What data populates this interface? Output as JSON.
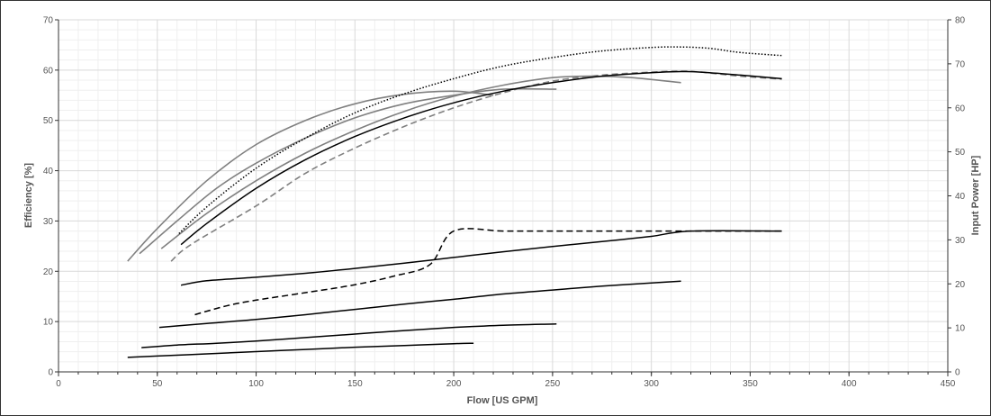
{
  "chart_data": {
    "type": "line",
    "title": "",
    "xlabel": "Flow [US GPM]",
    "ylabel": "Efficiency [%]",
    "y2label": "Input Power [HP]",
    "xlim": [
      0,
      450
    ],
    "ylim": [
      0,
      70
    ],
    "y2lim": [
      0,
      80
    ],
    "xticks": [
      0,
      50,
      100,
      150,
      200,
      250,
      300,
      350,
      400,
      450
    ],
    "yticks": [
      0,
      10,
      20,
      30,
      40,
      50,
      60,
      70
    ],
    "y2ticks": [
      0,
      10,
      20,
      30,
      40,
      50,
      60,
      70,
      80
    ],
    "grid": true,
    "legend": "none",
    "colors": {
      "black": "#000000",
      "gray": "#808080",
      "grid_major": "#d9d9d9",
      "grid_minor": "#efefef"
    },
    "series": [
      {
        "axis": "left",
        "color": "#808080",
        "style": "solid",
        "points": [
          [
            35,
            22
          ],
          [
            50,
            28.5
          ],
          [
            75,
            38
          ],
          [
            100,
            45.2
          ],
          [
            125,
            50
          ],
          [
            150,
            53.3
          ],
          [
            175,
            55.2
          ],
          [
            200,
            55.8
          ],
          [
            220,
            55
          ]
        ]
      },
      {
        "axis": "left",
        "color": "#808080",
        "style": "solid",
        "points": [
          [
            41,
            23.5
          ],
          [
            60,
            30
          ],
          [
            80,
            36.5
          ],
          [
            100,
            41.5
          ],
          [
            125,
            46.5
          ],
          [
            150,
            50.5
          ],
          [
            175,
            53.3
          ],
          [
            200,
            55
          ],
          [
            225,
            56.2
          ],
          [
            252,
            56.2
          ]
        ]
      },
      {
        "axis": "left",
        "color": "#808080",
        "style": "solid",
        "points": [
          [
            52,
            24.5
          ],
          [
            75,
            31.5
          ],
          [
            100,
            38
          ],
          [
            125,
            43.5
          ],
          [
            150,
            48
          ],
          [
            175,
            51.8
          ],
          [
            200,
            54.8
          ],
          [
            225,
            57
          ],
          [
            250,
            58.5
          ],
          [
            270,
            58.8
          ],
          [
            290,
            58.5
          ],
          [
            315,
            57.5
          ]
        ]
      },
      {
        "axis": "left",
        "color": "#808080",
        "style": "dashed",
        "points": [
          [
            57,
            22
          ],
          [
            67,
            25.3
          ],
          [
            100,
            33
          ],
          [
            125,
            39.5
          ],
          [
            150,
            44.5
          ],
          [
            175,
            48.8
          ],
          [
            200,
            52.5
          ],
          [
            225,
            55.5
          ],
          [
            250,
            57.8
          ],
          [
            275,
            59
          ],
          [
            300,
            59.6
          ],
          [
            315,
            59.8
          ],
          [
            325,
            59.6
          ],
          [
            345,
            58.8
          ],
          [
            366,
            58.2
          ]
        ]
      },
      {
        "axis": "left",
        "color": "#000000",
        "style": "solid",
        "points": [
          [
            62,
            25.3
          ],
          [
            75,
            29.5
          ],
          [
            100,
            36.5
          ],
          [
            125,
            42.2
          ],
          [
            150,
            46.8
          ],
          [
            175,
            50.5
          ],
          [
            200,
            53.5
          ],
          [
            225,
            55.8
          ],
          [
            250,
            57.5
          ],
          [
            275,
            58.8
          ],
          [
            300,
            59.5
          ],
          [
            315,
            59.7
          ],
          [
            325,
            59.6
          ],
          [
            345,
            59
          ],
          [
            366,
            58.3
          ]
        ]
      },
      {
        "axis": "left",
        "color": "#000000",
        "style": "dotted",
        "points": [
          [
            61,
            27.5
          ],
          [
            75,
            32.8
          ],
          [
            100,
            40.5
          ],
          [
            125,
            46.5
          ],
          [
            150,
            51.5
          ],
          [
            175,
            55.3
          ],
          [
            200,
            58.3
          ],
          [
            225,
            60.8
          ],
          [
            250,
            62.5
          ],
          [
            275,
            63.8
          ],
          [
            300,
            64.5
          ],
          [
            315,
            64.6
          ],
          [
            330,
            64.3
          ],
          [
            345,
            63.5
          ],
          [
            366,
            62.9
          ]
        ]
      },
      {
        "axis": "right",
        "color": "#000000",
        "style": "dashed",
        "points": [
          [
            69,
            13
          ],
          [
            85,
            15
          ],
          [
            100,
            16.3
          ],
          [
            125,
            18
          ],
          [
            150,
            19.8
          ],
          [
            170,
            21.8
          ],
          [
            188,
            24.4
          ],
          [
            200,
            32
          ],
          [
            225,
            32
          ],
          [
            250,
            32
          ],
          [
            300,
            32
          ],
          [
            366,
            32
          ]
        ]
      },
      {
        "axis": "right",
        "color": "#000000",
        "style": "solid",
        "points": [
          [
            62,
            19.7
          ],
          [
            75,
            20.7
          ],
          [
            100,
            21.5
          ],
          [
            125,
            22.4
          ],
          [
            150,
            23.5
          ],
          [
            175,
            24.7
          ],
          [
            200,
            26
          ],
          [
            225,
            27.3
          ],
          [
            250,
            28.5
          ],
          [
            275,
            29.6
          ],
          [
            300,
            30.8
          ],
          [
            320,
            32
          ],
          [
            366,
            32
          ]
        ]
      },
      {
        "axis": "right",
        "color": "#000000",
        "style": "solid",
        "points": [
          [
            51,
            10.1
          ],
          [
            75,
            11
          ],
          [
            100,
            11.9
          ],
          [
            125,
            13
          ],
          [
            150,
            14.2
          ],
          [
            175,
            15.4
          ],
          [
            200,
            16.5
          ],
          [
            225,
            17.7
          ],
          [
            250,
            18.6
          ],
          [
            275,
            19.5
          ],
          [
            300,
            20.2
          ],
          [
            315,
            20.6
          ]
        ]
      },
      {
        "axis": "right",
        "color": "#000000",
        "style": "solid",
        "points": [
          [
            42,
            5.5
          ],
          [
            60,
            6.1
          ],
          [
            80,
            6.5
          ],
          [
            100,
            7
          ],
          [
            125,
            7.8
          ],
          [
            150,
            8.6
          ],
          [
            175,
            9.4
          ],
          [
            200,
            10.1
          ],
          [
            225,
            10.6
          ],
          [
            252,
            10.9
          ]
        ]
      },
      {
        "axis": "right",
        "color": "#000000",
        "style": "solid",
        "points": [
          [
            35,
            3.3
          ],
          [
            50,
            3.6
          ],
          [
            75,
            4.1
          ],
          [
            100,
            4.6
          ],
          [
            125,
            5.1
          ],
          [
            150,
            5.6
          ],
          [
            175,
            6
          ],
          [
            200,
            6.4
          ],
          [
            210,
            6.5
          ]
        ]
      }
    ]
  }
}
